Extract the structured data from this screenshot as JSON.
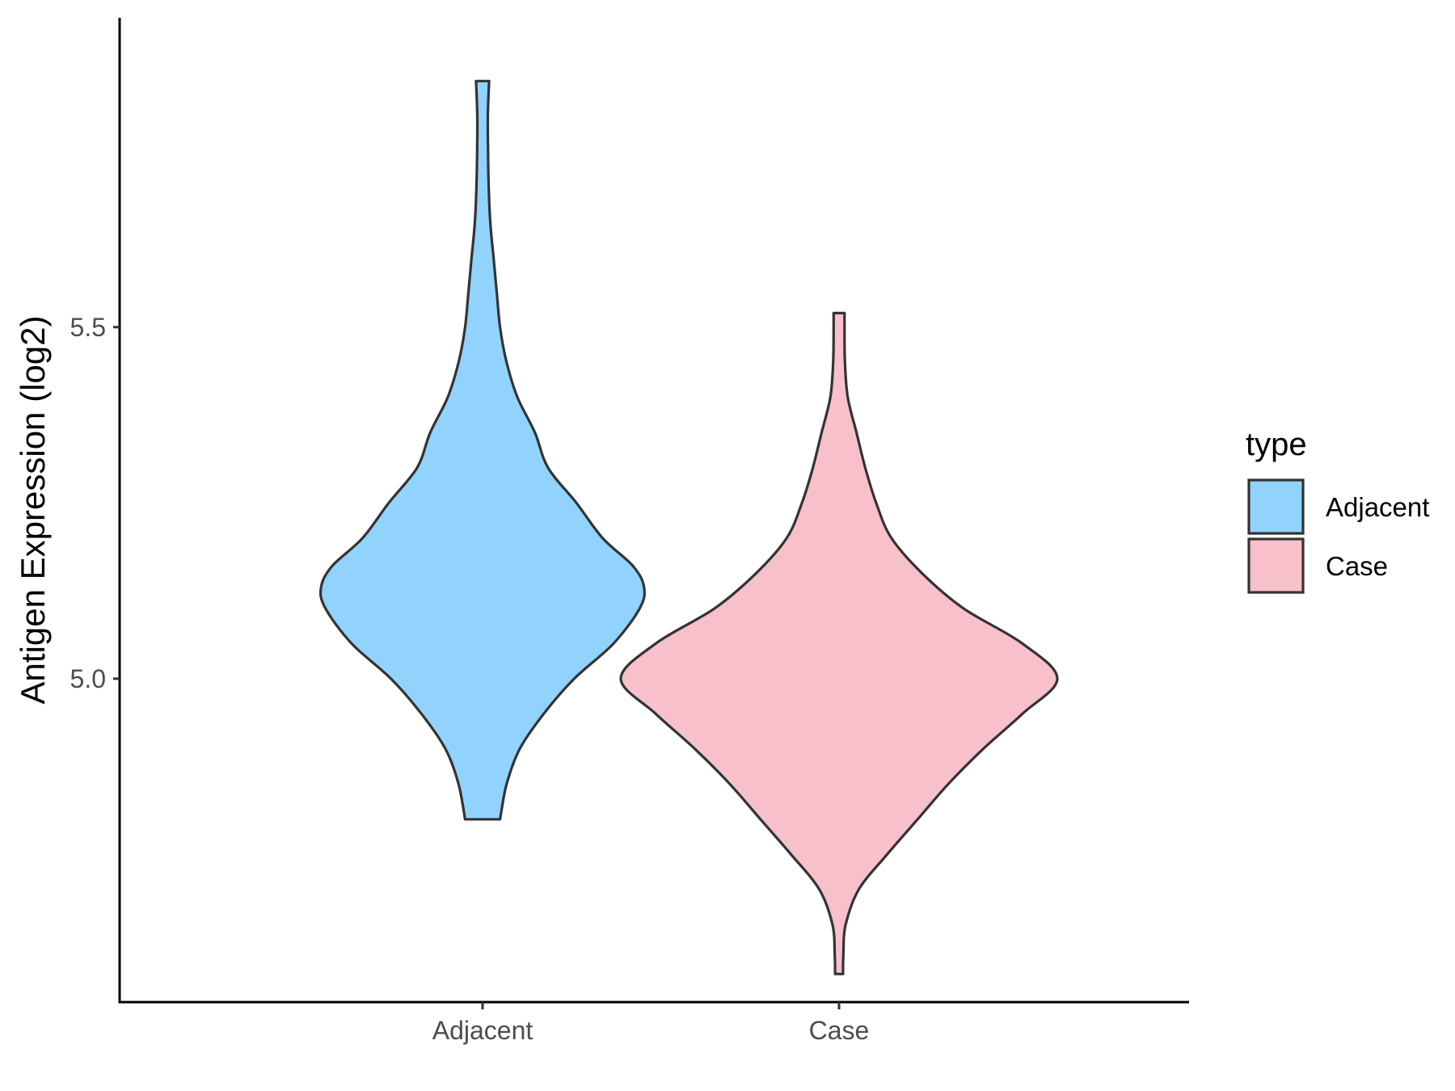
{
  "chart_data": {
    "type": "violin",
    "title": "",
    "xlabel": "",
    "ylabel": "Antigen Expression (log2)",
    "categories": [
      "Adjacent",
      "Case"
    ],
    "yticks": [
      5.0,
      5.5
    ],
    "ytick_labels": [
      "5.0",
      "5.5"
    ],
    "ylim": [
      4.54,
      5.94
    ],
    "grid": false,
    "legend": {
      "title": "type",
      "position": "right",
      "entries": [
        "Adjacent",
        "Case"
      ]
    },
    "series": [
      {
        "name": "Adjacent",
        "color": "#92d3fd",
        "range": [
          4.8,
          5.85
        ],
        "density": [
          [
            4.8,
            0.08
          ],
          [
            4.85,
            0.11
          ],
          [
            4.9,
            0.17
          ],
          [
            4.95,
            0.28
          ],
          [
            5.0,
            0.42
          ],
          [
            5.05,
            0.6
          ],
          [
            5.1,
            0.72
          ],
          [
            5.13,
            0.74
          ],
          [
            5.16,
            0.69
          ],
          [
            5.2,
            0.55
          ],
          [
            5.25,
            0.43
          ],
          [
            5.3,
            0.3
          ],
          [
            5.35,
            0.24
          ],
          [
            5.4,
            0.16
          ],
          [
            5.45,
            0.11
          ],
          [
            5.5,
            0.08
          ],
          [
            5.55,
            0.065
          ],
          [
            5.6,
            0.05
          ],
          [
            5.65,
            0.035
          ],
          [
            5.7,
            0.028
          ],
          [
            5.75,
            0.025
          ],
          [
            5.8,
            0.024
          ],
          [
            5.85,
            0.03
          ]
        ]
      },
      {
        "name": "Case",
        "color": "#f7c0cb",
        "range": [
          4.58,
          5.52
        ],
        "density": [
          [
            4.58,
            0.018
          ],
          [
            4.61,
            0.02
          ],
          [
            4.65,
            0.03
          ],
          [
            4.7,
            0.09
          ],
          [
            4.75,
            0.22
          ],
          [
            4.8,
            0.36
          ],
          [
            4.85,
            0.5
          ],
          [
            4.9,
            0.66
          ],
          [
            4.95,
            0.84
          ],
          [
            5.0,
            1.0
          ],
          [
            5.05,
            0.84
          ],
          [
            5.1,
            0.57
          ],
          [
            5.15,
            0.38
          ],
          [
            5.2,
            0.24
          ],
          [
            5.25,
            0.17
          ],
          [
            5.3,
            0.12
          ],
          [
            5.35,
            0.08
          ],
          [
            5.4,
            0.04
          ],
          [
            5.45,
            0.027
          ],
          [
            5.5,
            0.025
          ],
          [
            5.52,
            0.025
          ]
        ]
      }
    ]
  }
}
